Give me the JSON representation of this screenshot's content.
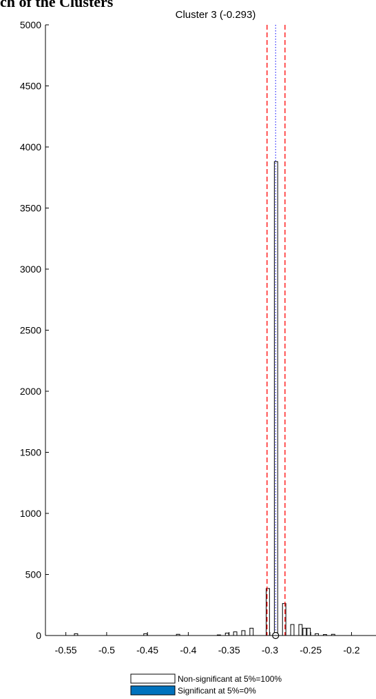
{
  "page": {
    "heading": "ch of the Clusters"
  },
  "chart_data": {
    "type": "bar",
    "title": "Cluster 3 (-0.293)",
    "xlabel": "",
    "ylabel": "",
    "xlim": [
      -0.575,
      -0.17
    ],
    "ylim": [
      0,
      5000
    ],
    "x_ticks": [
      -0.55,
      -0.5,
      -0.45,
      -0.4,
      -0.35,
      -0.3,
      -0.25,
      -0.2
    ],
    "x_tick_labels": [
      "-0.55",
      "-0.5",
      "-0.45",
      "-0.4",
      "-0.35",
      "-0.3",
      "-0.25",
      "-0.2"
    ],
    "y_ticks": [
      0,
      500,
      1000,
      1500,
      2000,
      2500,
      3000,
      3500,
      4000,
      4500,
      5000
    ],
    "y_tick_labels": [
      "0",
      "500",
      "1000",
      "1500",
      "2000",
      "2500",
      "3000",
      "3500",
      "4000",
      "4500",
      "5000"
    ],
    "grid": false,
    "bin_width": 0.005,
    "series": [
      {
        "name": "Non-significant at 5%=100%",
        "color": "#ffffff",
        "edge_color": "#000000",
        "x": [
          -0.5375,
          -0.4525,
          -0.4125,
          -0.3625,
          -0.3525,
          -0.3425,
          -0.3325,
          -0.3225,
          -0.3025,
          -0.2925,
          -0.2825,
          -0.2725,
          -0.2625,
          -0.2575,
          -0.2525,
          -0.2425,
          -0.2325,
          -0.2225
        ],
        "values": [
          15,
          15,
          10,
          5,
          20,
          30,
          40,
          60,
          385,
          3880,
          262,
          90,
          90,
          60,
          60,
          15,
          8,
          10
        ]
      },
      {
        "name": "Significant at 5%=0%",
        "color": "#0072bd",
        "edge_color": "#000000",
        "x": [],
        "values": []
      }
    ],
    "reference_lines": {
      "estimate": -0.293,
      "estimate_color": "#0000ff",
      "bounds": [
        -0.3035,
        -0.2815
      ],
      "bounds_color": "#ff0000"
    },
    "marker_x": -0.293,
    "legend": {
      "placement": "bottom-center",
      "entries": [
        {
          "label": "Non-significant at 5%=100%",
          "color": "#ffffff"
        },
        {
          "label": "Significant at 5%=0%",
          "color": "#0072bd"
        }
      ]
    }
  }
}
